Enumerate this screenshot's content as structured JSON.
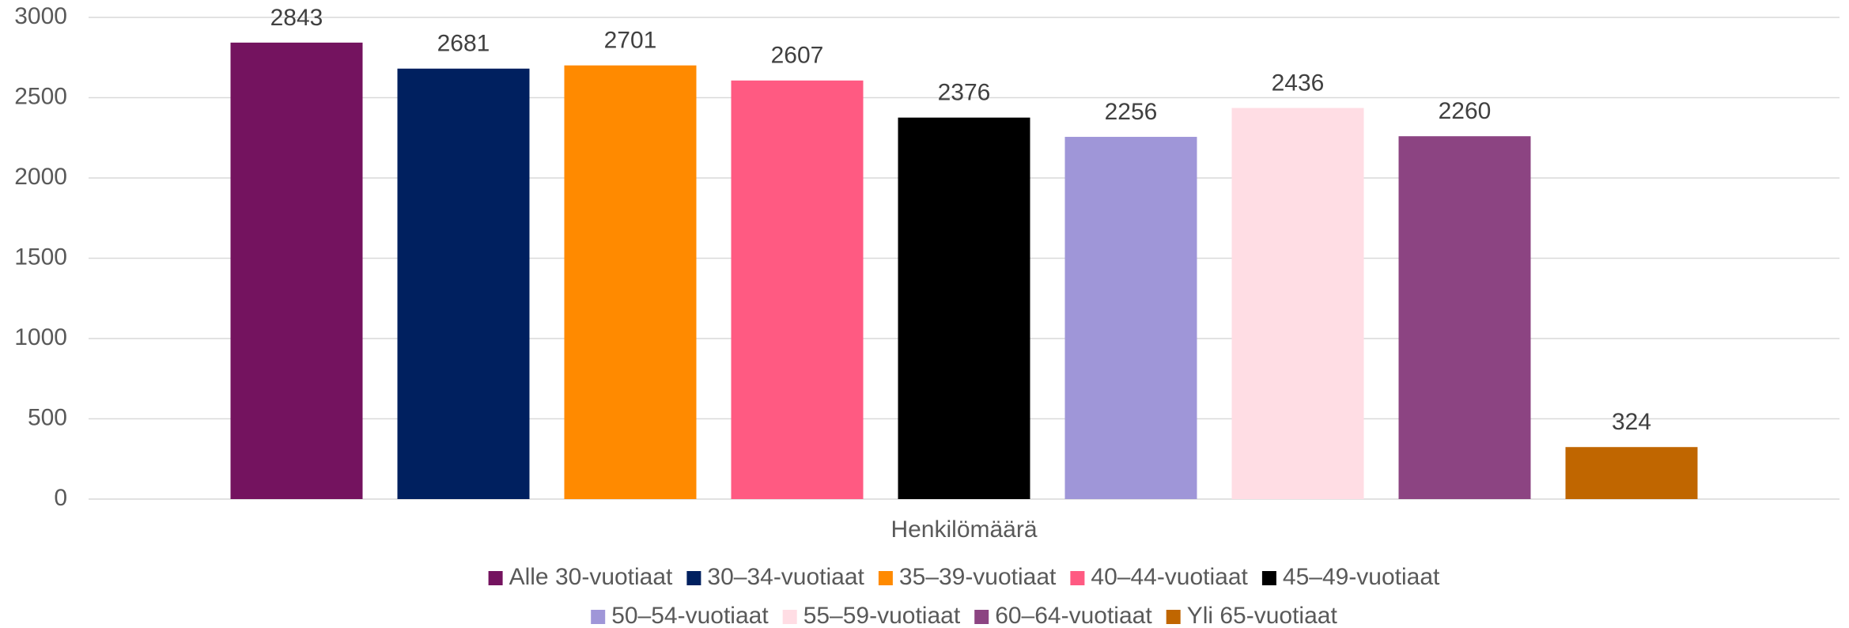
{
  "chart_data": {
    "type": "bar",
    "categories": [
      "Henkilömäärä"
    ],
    "series": [
      {
        "name": "Alle 30-vuotiaat",
        "color": "#74135f",
        "values": [
          2843
        ]
      },
      {
        "name": "30–34-vuotiaat",
        "color": "#00205f",
        "values": [
          2681
        ]
      },
      {
        "name": "35–39-vuotiaat",
        "color": "#ff8a00",
        "values": [
          2701
        ]
      },
      {
        "name": "40–44-vuotiaat",
        "color": "#ff5a82",
        "values": [
          2607
        ]
      },
      {
        "name": "45–49-vuotiaat",
        "color": "#000000",
        "values": [
          2376
        ]
      },
      {
        "name": "50–54-vuotiaat",
        "color": "#9f96d8",
        "values": [
          2256
        ]
      },
      {
        "name": "55–59-vuotiaat",
        "color": "#ffdde4",
        "values": [
          2436
        ]
      },
      {
        "name": "60–64-vuotiaat",
        "color": "#8c4482",
        "values": [
          2260
        ]
      },
      {
        "name": "Yli 65-vuotiaat",
        "color": "#c06600",
        "values": [
          324
        ]
      }
    ],
    "ylim": [
      0,
      3000
    ],
    "yticks": [
      0,
      500,
      1000,
      1500,
      2000,
      2500,
      3000
    ],
    "grid": true,
    "legend": "bottom"
  }
}
